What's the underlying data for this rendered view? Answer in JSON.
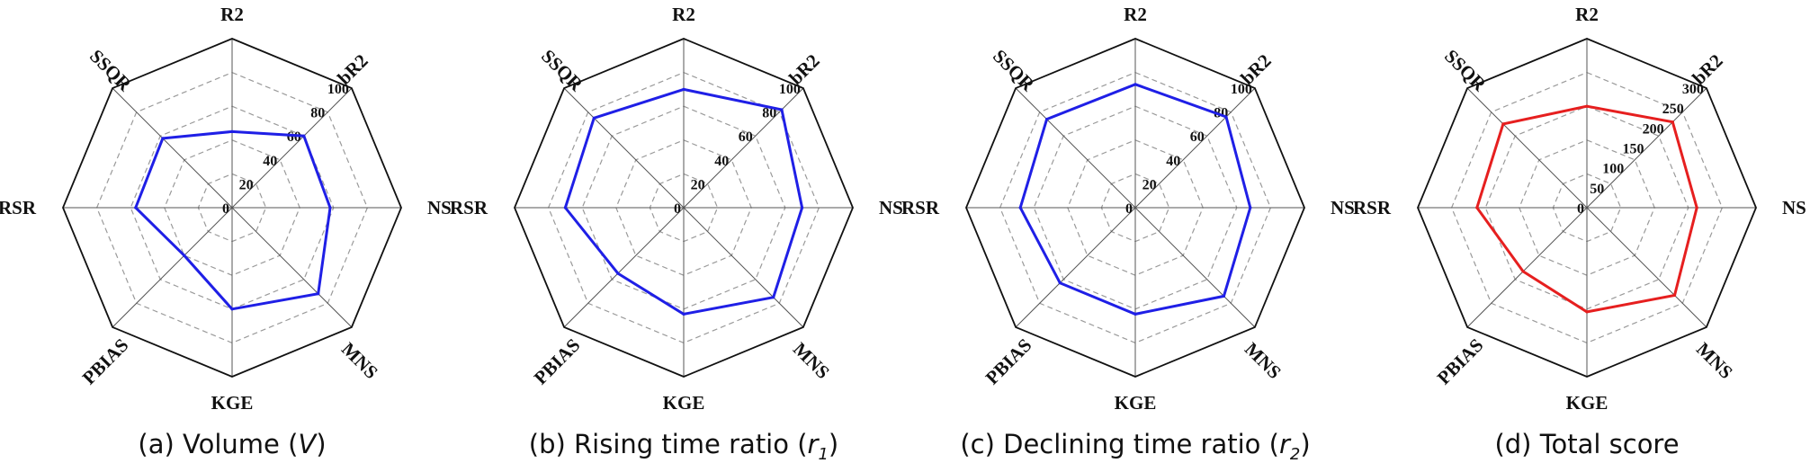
{
  "chart_data": [
    {
      "type": "radar",
      "caption_prefix": "(a) Volume (",
      "caption_symbol": "V",
      "caption_sub": "",
      "caption_suffix": ")",
      "axes": [
        "R2",
        "bR2",
        "NS",
        "MNS",
        "KGE",
        "PBIAS",
        "RSR",
        "SSQR"
      ],
      "rmax": 100,
      "ticks": [
        0,
        20,
        40,
        60,
        80,
        100
      ],
      "series": [
        {
          "name": "Volume",
          "color": "#1f1fe6",
          "values": [
            45,
            60,
            58,
            72,
            60,
            40,
            57,
            58
          ]
        }
      ]
    },
    {
      "type": "radar",
      "caption_prefix": "(b) Rising time ratio (",
      "caption_symbol": "r",
      "caption_sub": "1",
      "caption_suffix": ")",
      "axes": [
        "R2",
        "bR2",
        "NS",
        "MNS",
        "KGE",
        "PBIAS",
        "RSR",
        "SSQR"
      ],
      "rmax": 100,
      "ticks": [
        0,
        20,
        40,
        60,
        80,
        100
      ],
      "series": [
        {
          "name": "Rising time ratio",
          "color": "#1f1fe6",
          "values": [
            70,
            82,
            70,
            75,
            63,
            55,
            70,
            75
          ]
        }
      ]
    },
    {
      "type": "radar",
      "caption_prefix": "(c) Declining time ratio (",
      "caption_symbol": "r",
      "caption_sub": "2",
      "caption_suffix": ")",
      "axes": [
        "R2",
        "bR2",
        "NS",
        "MNS",
        "KGE",
        "PBIAS",
        "RSR",
        "SSQR"
      ],
      "rmax": 100,
      "ticks": [
        0,
        20,
        40,
        60,
        80,
        100
      ],
      "series": [
        {
          "name": "Declining time ratio",
          "color": "#1f1fe6",
          "values": [
            73,
            76,
            68,
            74,
            63,
            63,
            68,
            74
          ]
        }
      ]
    },
    {
      "type": "radar",
      "caption_prefix": "(d) Total score",
      "caption_symbol": "",
      "caption_sub": "",
      "caption_suffix": "",
      "axes": [
        "R2",
        "bR2",
        "NS",
        "MNS",
        "KGE",
        "PBIAS",
        "RSR",
        "SSQR"
      ],
      "rmax": 300,
      "ticks": [
        0,
        50,
        100,
        150,
        200,
        250,
        300
      ],
      "series": [
        {
          "name": "Total score",
          "color": "#e61f1f",
          "values": [
            180,
            215,
            195,
            220,
            185,
            160,
            195,
            210
          ]
        }
      ]
    }
  ]
}
